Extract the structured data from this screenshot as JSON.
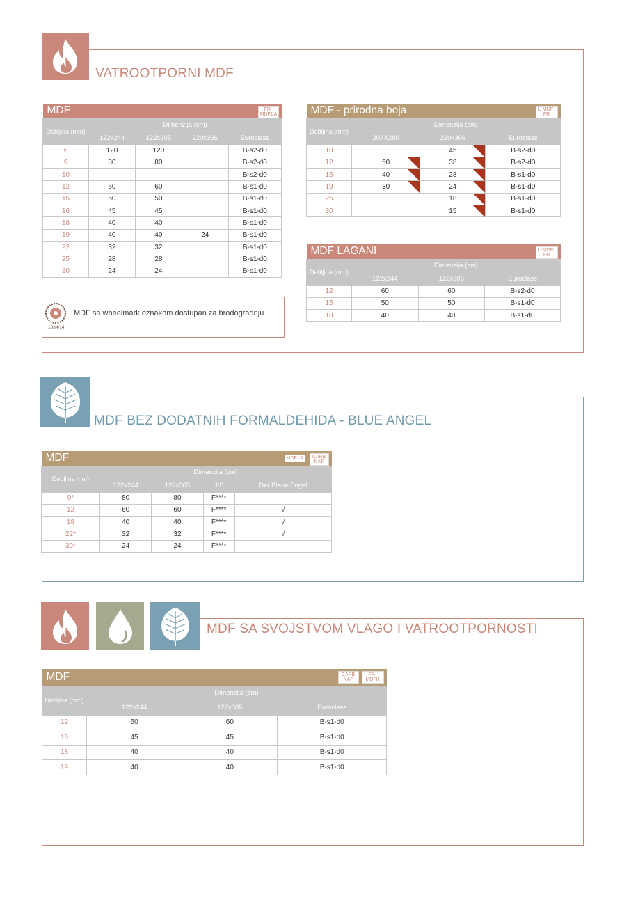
{
  "section1": {
    "title": "VATROOTPORNI MDF",
    "table_mdf": {
      "title": "MDF",
      "tag": "FR-MDF.LA",
      "thickness_label": "Debljina (mm)",
      "dim_label": "Dimenzija  (cm)",
      "columns": [
        "122x244",
        "122x305",
        "220x366",
        "Euroclass"
      ],
      "rows": [
        [
          "6",
          "120",
          "120",
          "",
          "B-s2-d0"
        ],
        [
          "9",
          "80",
          "80",
          "",
          "B-s2-d0"
        ],
        [
          "10",
          "",
          "",
          "",
          "B-s2-d0"
        ],
        [
          "12",
          "60",
          "60",
          "",
          "B-s1-d0"
        ],
        [
          "15",
          "50",
          "50",
          "",
          "B-s1-d0"
        ],
        [
          "16",
          "45",
          "45",
          "",
          "B-s1-d0"
        ],
        [
          "18",
          "40",
          "40",
          "",
          "B-s1-d0"
        ],
        [
          "19",
          "40",
          "40",
          "24",
          "B-s1-d0"
        ],
        [
          "22",
          "32",
          "32",
          "",
          "B-s1-d0"
        ],
        [
          "25",
          "28",
          "28",
          "",
          "B-s1-d0"
        ],
        [
          "30",
          "24",
          "24",
          "",
          "B-s1-d0"
        ]
      ]
    },
    "table_natural": {
      "title": "MDF - prirodna boja",
      "tag": "L-MDF-FR",
      "thickness_label": "Debljina (mm)",
      "dim_label": "Dimenzija (cm)",
      "columns": [
        "207X280",
        "220x366",
        "Euroclass"
      ],
      "rows": [
        [
          "10",
          "",
          "45",
          "B-s2-d0"
        ],
        [
          "12",
          "50",
          "38",
          "B-s2-d0"
        ],
        [
          "16",
          "40",
          "28",
          "B-s1-d0"
        ],
        [
          "19",
          "30",
          "24",
          "B-s1-d0"
        ],
        [
          "25",
          "",
          "18",
          "B-s1-d0"
        ],
        [
          "30",
          "",
          "15",
          "B-s1-d0"
        ]
      ]
    },
    "table_light": {
      "title": "MDF LAGANI",
      "tag": "L-MDF-FR",
      "thickness_label": "Debljina (mm)",
      "dim_label": "Dimenzija  (cm)",
      "columns": [
        "122x244",
        "122x305",
        "Euroclass"
      ],
      "rows": [
        [
          "12",
          "60",
          "60",
          "B-s2-d0"
        ],
        [
          "15",
          "50",
          "50",
          "B-s1-d0"
        ],
        [
          "18",
          "40",
          "40",
          "B-s1-d0"
        ]
      ]
    },
    "note": {
      "text": "MDF sa  wheelmark oznakom dostupan za brodogradnju",
      "code": "1084/14"
    }
  },
  "section2": {
    "title": "MDF BEZ DODATNIH FORMALDEHIDA - BLUE ANGEL",
    "table": {
      "title": "MDF",
      "tags": [
        "MDF.LA",
        "CARB NAF"
      ],
      "thickness_label": "Debljina mm)",
      "dim_label": "Dimenzija (cm)",
      "columns": [
        "122x244",
        "122x305",
        "JIS",
        "Der Blaue Engel"
      ],
      "rows": [
        [
          "9*",
          "80",
          "80",
          "F****",
          ""
        ],
        [
          "12",
          "60",
          "60",
          "F****",
          "√"
        ],
        [
          "18",
          "40",
          "40",
          "F****",
          "√"
        ],
        [
          "22*",
          "32",
          "32",
          "F****",
          "√"
        ],
        [
          "30*",
          "24",
          "24",
          "F****",
          ""
        ]
      ]
    }
  },
  "section3": {
    "title": "MDF SA SVOJSTVOM VLAGO I VATROOTPORNOSTI",
    "table": {
      "title": "MDF",
      "tags": [
        "CARB NAF",
        "FR-MDFH"
      ],
      "thickness_label": "Debljina (mm)",
      "dim_label": "Dimenzija (cm)",
      "columns": [
        "122x244",
        "122x305",
        "Euroclass"
      ],
      "rows": [
        [
          "12",
          "60",
          "60",
          "B-s1-d0"
        ],
        [
          "16",
          "45",
          "45",
          "B-s1-d0"
        ],
        [
          "18",
          "40",
          "40",
          "B-s1-d0"
        ],
        [
          "19",
          "40",
          "40",
          "B-s1-d0"
        ]
      ]
    }
  },
  "colors": {
    "fire": "#c9887a",
    "leaf": "#7aa0b4",
    "drop": "#a4a98f",
    "table_header": "#b69b74",
    "grid": "#c6c6c6"
  },
  "icons": [
    "flame-icon",
    "leaf-icon",
    "water-drop-icon",
    "wheelmark-icon"
  ]
}
